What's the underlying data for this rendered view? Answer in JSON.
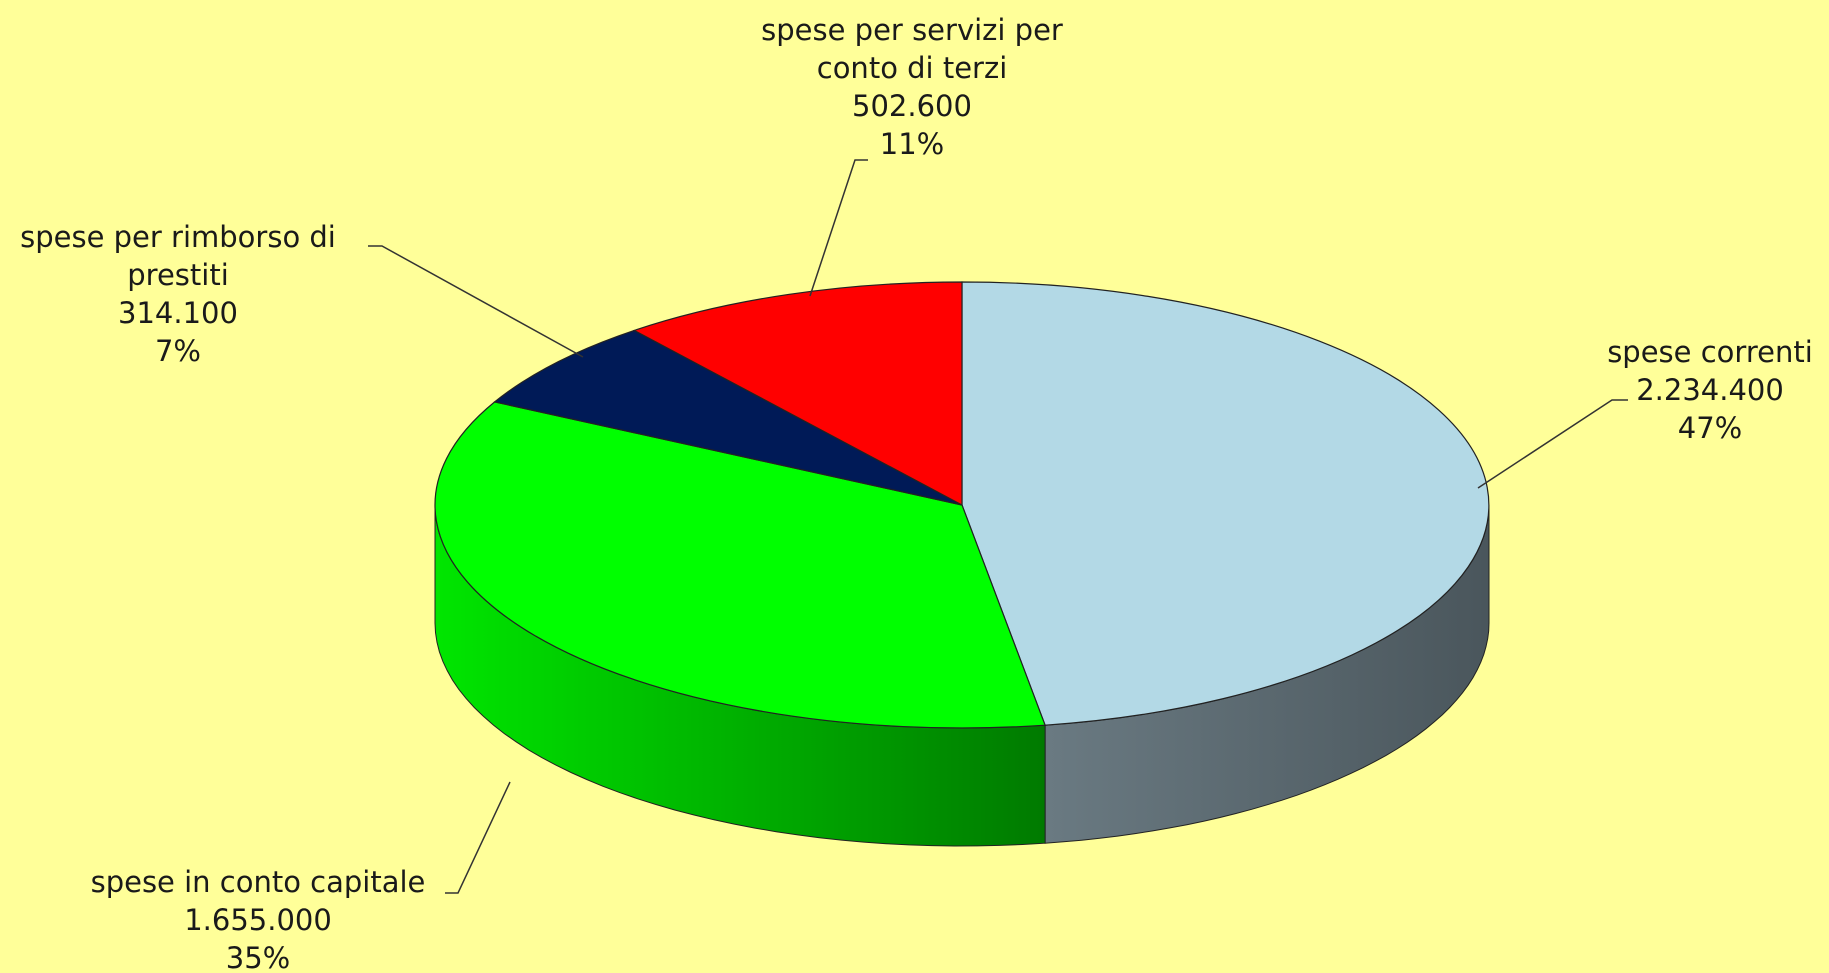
{
  "chart_data": {
    "type": "pie",
    "style": "3d",
    "slices": [
      {
        "name": "spese correnti",
        "name_lines": [
          "spese correnti"
        ],
        "value": 2234400,
        "value_label": "2.234.400",
        "percent": "47%",
        "color": "#b3d9e6",
        "side_color": "#4e5b62"
      },
      {
        "name": "spese in conto capitale",
        "name_lines": [
          "spese in conto capitale"
        ],
        "value": 1655000,
        "value_label": "1.655.000",
        "percent": "35%",
        "color": "#00ff00",
        "side_color": "#00b300"
      },
      {
        "name": "spese per rimborso di prestiti",
        "name_lines": [
          "spese per rimborso di",
          "prestiti"
        ],
        "value": 314100,
        "value_label": "314.100",
        "percent": "7%",
        "color": "#001a57",
        "side_color": "#00103a"
      },
      {
        "name": "spese per servizi per conto di terzi",
        "name_lines": [
          "spese per servizi per",
          "conto di terzi"
        ],
        "value": 502600,
        "value_label": "502.600",
        "percent": "11%",
        "color": "#ff0000",
        "side_color": "#b30000"
      }
    ],
    "background": "#ffff99"
  }
}
